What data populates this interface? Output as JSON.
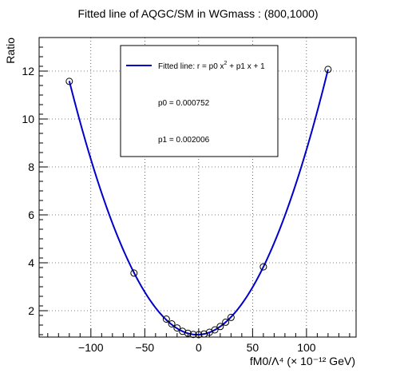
{
  "chart_data": {
    "type": "scatter",
    "title": "Fitted line of AQGC/SM in WGmass : (800,1000)",
    "xlabel": "fM0/Λ⁴ (× 10⁻¹² GeV)",
    "ylabel": "Ratio",
    "xlim": [
      -148,
      146
    ],
    "ylim": [
      0.9,
      13.4
    ],
    "x_ticks": [
      -100,
      -50,
      0,
      50,
      100
    ],
    "x_tick_labels": [
      "−100",
      "−50",
      "0",
      "50",
      "100"
    ],
    "y_ticks": [
      2,
      4,
      6,
      8,
      10,
      12
    ],
    "y_tick_labels": [
      "2",
      "4",
      "6",
      "8",
      "10",
      "12"
    ],
    "grid": true,
    "points": {
      "x": [
        -120,
        -60,
        -30,
        -25,
        -20,
        -15,
        -10,
        -5,
        0,
        5,
        10,
        15,
        20,
        25,
        30,
        60,
        120
      ],
      "y": [
        11.57,
        3.57,
        1.65,
        1.45,
        1.28,
        1.14,
        1.06,
        1.01,
        1.0,
        1.03,
        1.1,
        1.2,
        1.34,
        1.52,
        1.72,
        3.83,
        12.07
      ]
    },
    "fit": {
      "name": "Fitted line",
      "formula": "r = p0 x² + p1 x + 1",
      "p0": 0.000752,
      "p1": 0.002006,
      "x_range": [
        -120,
        120
      ],
      "color": "#0000cc"
    },
    "legend": {
      "placement": "top-center",
      "entry_label_prefix": "Fitted line: r =  p0 x",
      "entry_label_sup": "2",
      "entry_label_suffix": " + p1 x + 1",
      "p0_text": "p0 = 0.000752",
      "p1_text": "p1 = 0.002006"
    }
  }
}
